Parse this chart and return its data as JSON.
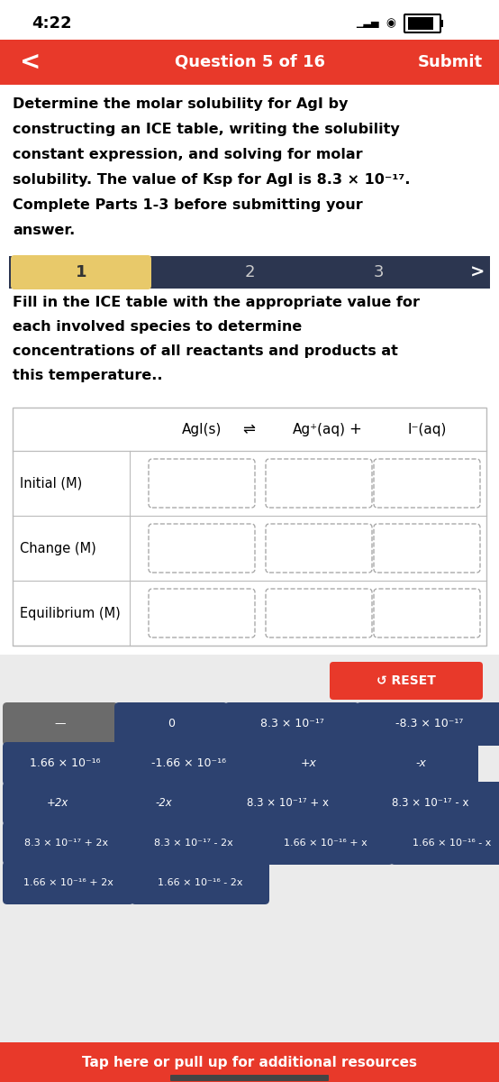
{
  "time": "4:22",
  "nav_bar_color": "#E8392A",
  "nav_text": "Question 5 of 16",
  "nav_submit": "Submit",
  "bg_color": "#FFFFFF",
  "white": "#FFFFFF",
  "light_gray_bg": "#EBEBEB",
  "dark_navy": "#2C3650",
  "btn_navy": "#2D4270",
  "btn_gray": "#6B6B6B",
  "btn_red": "#E8392A",
  "question_text_line1": "Determine the molar solubility for AgI by",
  "question_text_line2": "constructing an ICE table, writing the solubility",
  "question_text_line3": "constant expression, and solving for molar",
  "question_text_line4": "solubility. The value of Ksp for AgI is 8.3 × 10⁻¹⁷.",
  "question_text_line5": "Complete Parts 1-3 before submitting your",
  "question_text_line6": "answer.",
  "instruction_line1": "Fill in the ICE table with the appropriate value for",
  "instruction_line2": "each involved species to determine",
  "instruction_line3": "concentrations of all reactants and products at",
  "instruction_line4": "this temperature..",
  "row_labels": [
    "Initial (M)",
    "Change (M)",
    "Equilibrium (M)"
  ],
  "buttons_row1": [
    "—",
    "0",
    "8.3 × 10⁻¹⁷",
    "-8.3 × 10⁻¹⁷"
  ],
  "buttons_row2": [
    "1.66 × 10⁻¹⁶",
    "-1.66 × 10⁻¹⁶",
    "+x",
    "-x"
  ],
  "buttons_row3": [
    "+2x",
    "-2x",
    "8.3 × 10⁻¹⁷ + x",
    "8.3 × 10⁻¹⁷ - x"
  ],
  "buttons_row4": [
    "8.3 × 10⁻¹⁷ + 2x",
    "8.3 × 10⁻¹⁷ - 2x",
    "1.66 × 10⁻¹⁶ + x",
    "1.66 × 10⁻¹⁶ - x"
  ],
  "buttons_row5": [
    "1.66 × 10⁻¹⁶ + 2x",
    "1.66 × 10⁻¹⁶ - 2x"
  ],
  "footer_text": "Tap here or pull up for additional resources",
  "footer_color": "#E8392A",
  "reset_text": "↺ RESET",
  "tab_active_color": "#E8C96A",
  "tab_inactive_color": "#D8D8D8"
}
